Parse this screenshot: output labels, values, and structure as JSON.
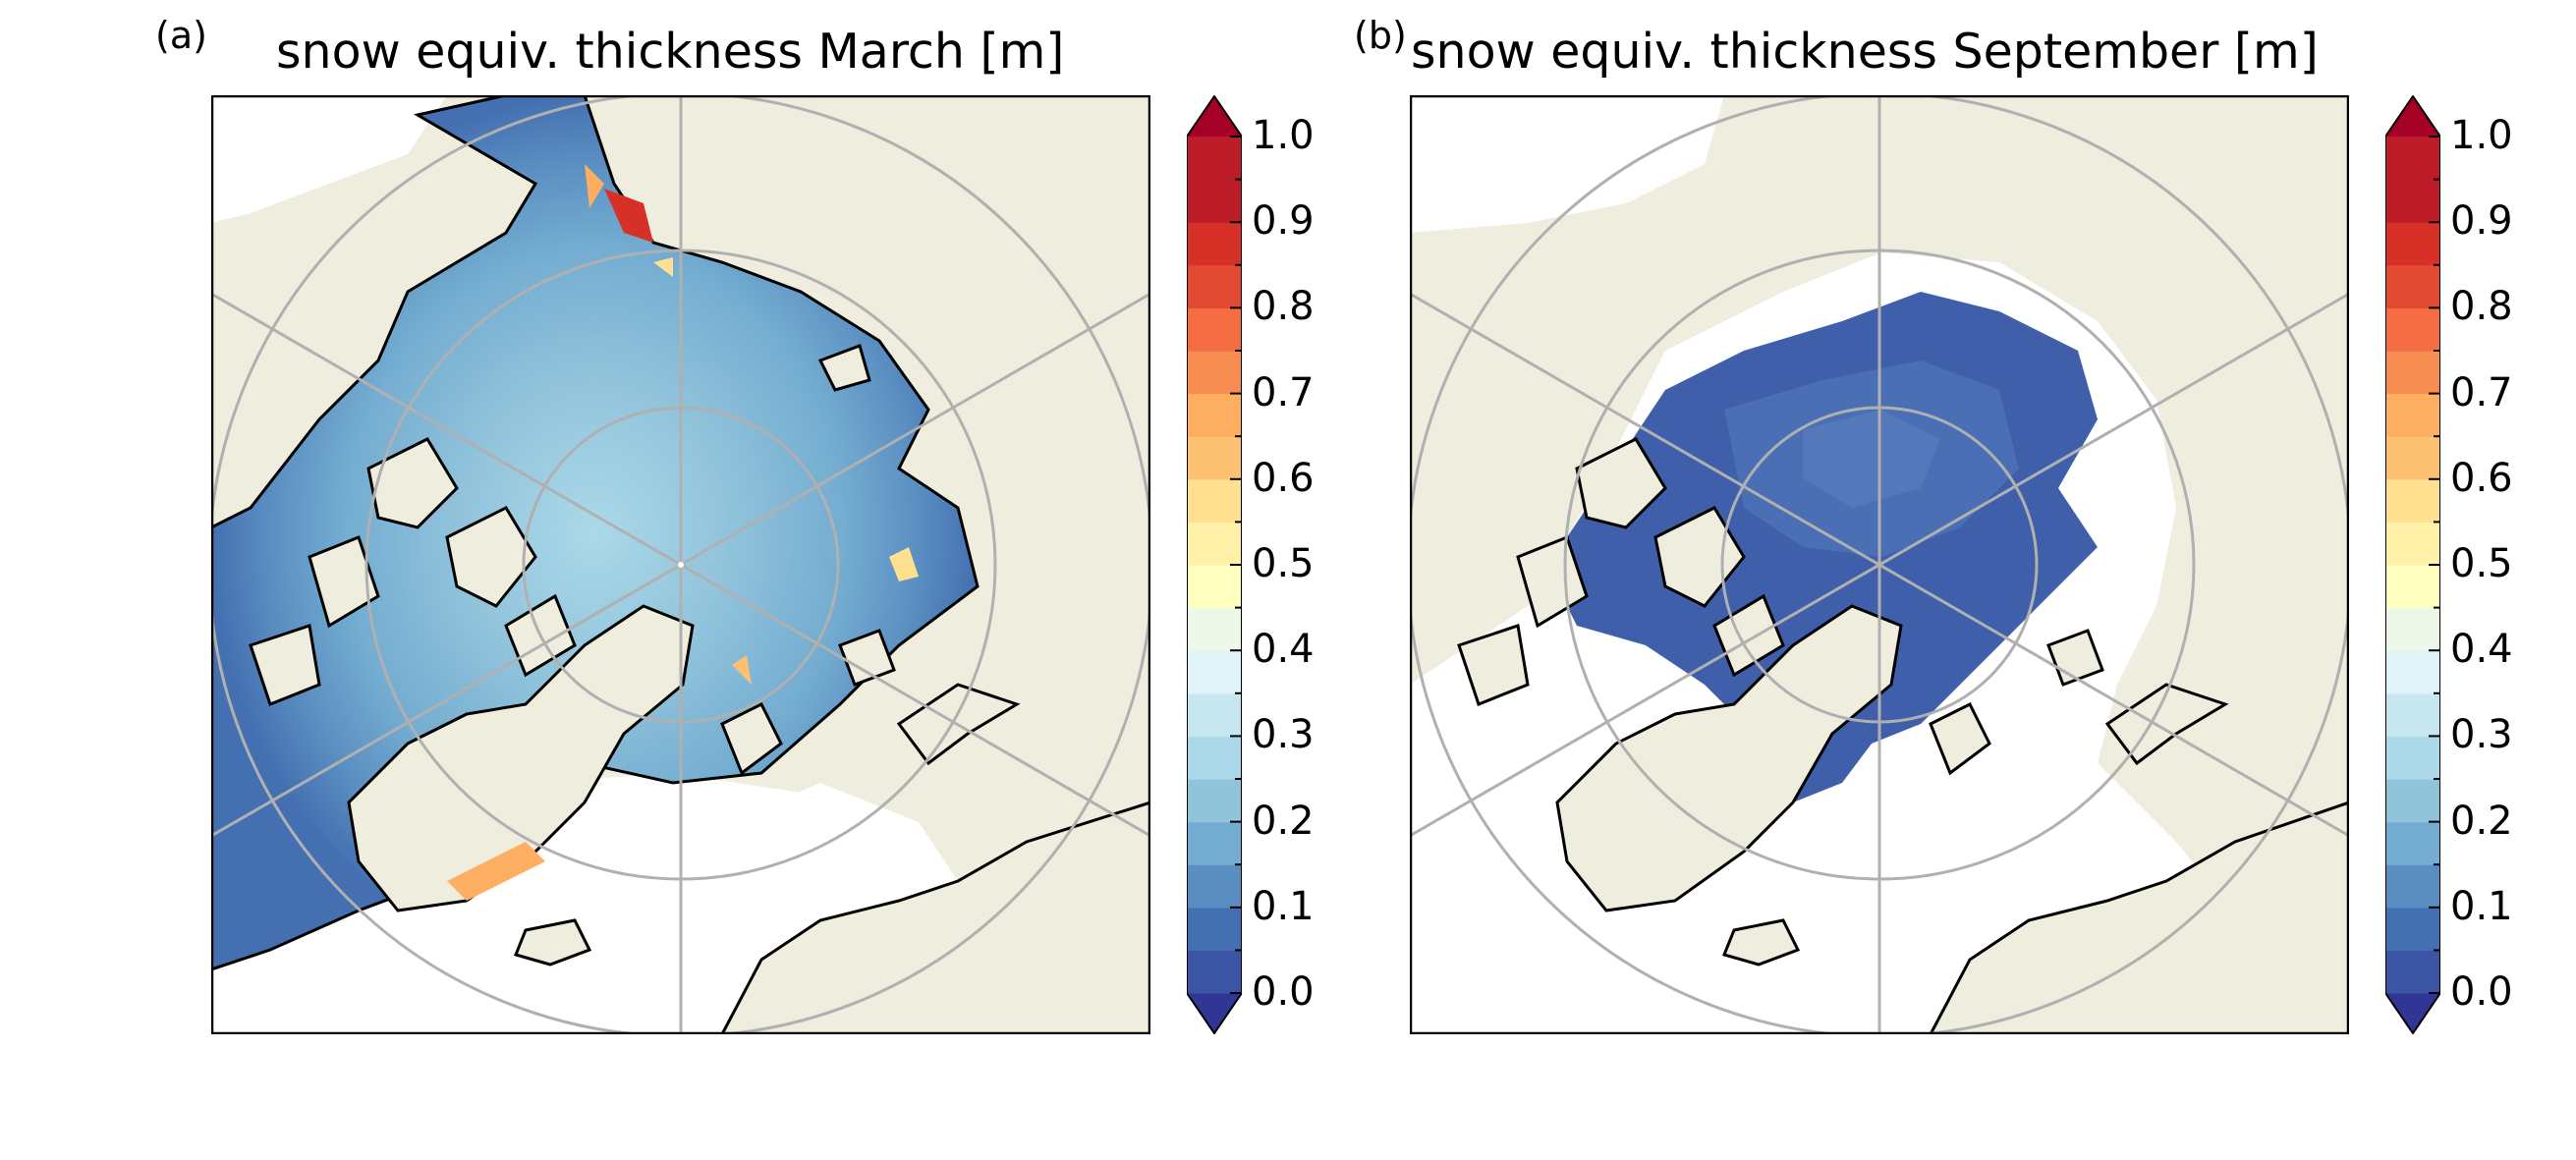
{
  "panels": [
    {
      "label": "(a)",
      "title": "snow equiv. thickness March [m]",
      "month": "March",
      "ice_cover": "extensive",
      "dominant_range_m": [
        0.1,
        0.4
      ],
      "local_max_m": 1.0
    },
    {
      "label": "(b)",
      "title": "snow equiv. thickness September [m]",
      "month": "September",
      "ice_cover": "reduced",
      "dominant_range_m": [
        0.0,
        0.1
      ],
      "local_max_m": 0.15
    }
  ],
  "colorbar": {
    "ticks": [
      "0.0",
      "0.1",
      "0.2",
      "0.3",
      "0.4",
      "0.5",
      "0.6",
      "0.7",
      "0.8",
      "0.9",
      "1.0"
    ],
    "min": 0.0,
    "max": 1.0,
    "levels": 20,
    "extend": "both",
    "colormap": "RdYlBu_r",
    "colors": [
      "#313695",
      "#3b54a4",
      "#4470b1",
      "#5a8ec1",
      "#74add1",
      "#91c3db",
      "#abd9e9",
      "#c6e6f0",
      "#e0f3f8",
      "#eef8e8",
      "#ffffbf",
      "#fff1a8",
      "#fee090",
      "#fdc173",
      "#fdae61",
      "#f88d52",
      "#f46d43",
      "#e34a33",
      "#d73027",
      "#bd1d29",
      "#a50026"
    ]
  },
  "map_colors": {
    "land": "#efedde",
    "ocean_no_ice": "#ffffff",
    "coastline": "#000000",
    "gridlines": "#b0b0b0"
  }
}
